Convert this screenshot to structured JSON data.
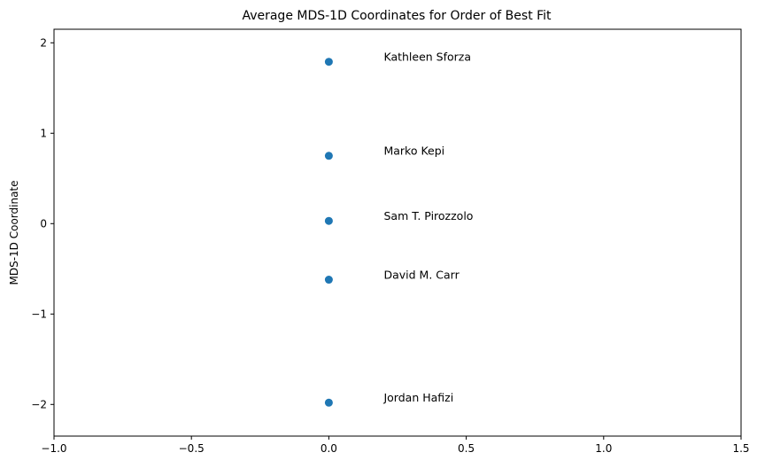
{
  "chart_data": {
    "type": "scatter",
    "title": "Average MDS-1D Coordinates for Order of Best Fit",
    "xlabel": "",
    "ylabel": "MDS-1D Coordinate",
    "xlim": [
      -1.0,
      1.5
    ],
    "ylim": [
      -2.35,
      2.15
    ],
    "x_ticks": [
      -1.0,
      -0.5,
      0.0,
      0.5,
      1.0,
      1.5
    ],
    "x_tick_labels": [
      "−1.0",
      "−0.5",
      "0.0",
      "0.5",
      "1.0",
      "1.5"
    ],
    "y_ticks": [
      2,
      1,
      0,
      -1,
      -2
    ],
    "y_tick_labels": [
      "2",
      "1",
      "0",
      "−1",
      "−2"
    ],
    "grid": false,
    "legend": "none",
    "marker_color": "#1f77b4",
    "points": [
      {
        "label": "Kathleen Sforza",
        "x": 0.0,
        "y": 1.79
      },
      {
        "label": "Marko Kepi",
        "x": 0.0,
        "y": 0.75
      },
      {
        "label": "Sam T. Pirozzolo",
        "x": 0.0,
        "y": 0.03
      },
      {
        "label": "David M. Carr",
        "x": 0.0,
        "y": -0.62
      },
      {
        "label": "Jordan Hafizi",
        "x": 0.0,
        "y": -1.98
      }
    ],
    "label_x": 0.2,
    "label_y_offset": 0.05
  }
}
